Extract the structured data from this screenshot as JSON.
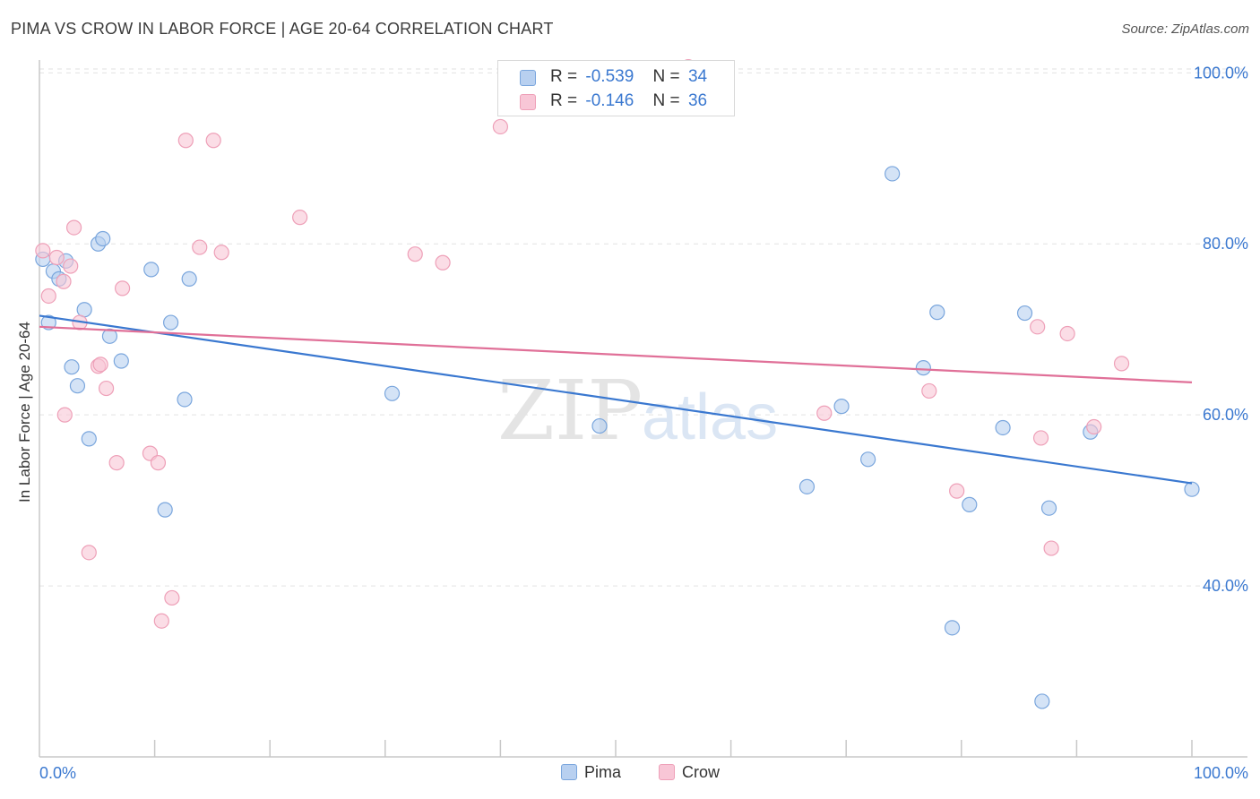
{
  "title": "PIMA VS CROW IN LABOR FORCE | AGE 20-64 CORRELATION CHART",
  "source": "Source: ZipAtlas.com",
  "watermark": {
    "zip": "ZIP",
    "atlas": "atlas"
  },
  "legend": {
    "pima": {
      "r_label": "R =",
      "r_value": "-0.539",
      "n_label": "N =",
      "n_value": "34"
    },
    "crow": {
      "r_label": "R =",
      "r_value": "-0.146",
      "n_label": "N =",
      "n_value": "36"
    }
  },
  "colors": {
    "pima_fill": "#b8d0f0",
    "pima_stroke": "#7aa6dd",
    "pima_line": "#3a78d0",
    "crow_fill": "#f8c6d6",
    "crow_stroke": "#eea0b8",
    "crow_line": "#e07098",
    "axis_text": "#3a78d0"
  },
  "chart_data": {
    "type": "scatter",
    "title": "PIMA VS CROW IN LABOR FORCE | AGE 20-64 CORRELATION CHART",
    "xlabel": "",
    "ylabel": "In Labor Force | Age 20-64",
    "xlim": [
      0,
      100
    ],
    "ylim": [
      20,
      101.5
    ],
    "x_tick_labels": [
      "0.0%",
      "100.0%"
    ],
    "y_ticks": [
      40,
      60,
      80,
      100
    ],
    "y_tick_labels": [
      "40.0%",
      "60.0%",
      "80.0%",
      "100.0%"
    ],
    "series": [
      {
        "name": "Pima",
        "points": [
          [
            0.3,
            78.2
          ],
          [
            0.8,
            70.8
          ],
          [
            1.2,
            76.8
          ],
          [
            1.7,
            75.9
          ],
          [
            2.3,
            78.0
          ],
          [
            2.8,
            65.6
          ],
          [
            3.3,
            63.4
          ],
          [
            3.9,
            72.3
          ],
          [
            4.3,
            57.2
          ],
          [
            5.1,
            80.0
          ],
          [
            5.5,
            80.6
          ],
          [
            6.1,
            69.2
          ],
          [
            7.1,
            66.3
          ],
          [
            9.7,
            77.0
          ],
          [
            10.9,
            48.9
          ],
          [
            11.4,
            70.8
          ],
          [
            12.6,
            61.8
          ],
          [
            13.0,
            75.9
          ],
          [
            30.6,
            62.5
          ],
          [
            48.6,
            58.7
          ],
          [
            66.6,
            51.6
          ],
          [
            69.6,
            61.0
          ],
          [
            71.9,
            54.8
          ],
          [
            74.0,
            88.2
          ],
          [
            76.7,
            65.5
          ],
          [
            77.9,
            72.0
          ],
          [
            79.2,
            35.1
          ],
          [
            80.7,
            49.5
          ],
          [
            83.6,
            58.5
          ],
          [
            85.5,
            71.9
          ],
          [
            87.0,
            26.5
          ],
          [
            87.6,
            49.1
          ],
          [
            91.2,
            58.0
          ],
          [
            100.0,
            51.3
          ]
        ],
        "trend": {
          "x": [
            0,
            100
          ],
          "y": [
            71.6,
            52.0
          ]
        }
      },
      {
        "name": "Crow",
        "points": [
          [
            0.3,
            79.2
          ],
          [
            0.8,
            73.9
          ],
          [
            1.5,
            78.4
          ],
          [
            2.1,
            75.6
          ],
          [
            2.2,
            60.0
          ],
          [
            2.7,
            77.4
          ],
          [
            3.0,
            81.9
          ],
          [
            3.5,
            70.8
          ],
          [
            4.3,
            43.9
          ],
          [
            5.1,
            65.7
          ],
          [
            5.3,
            65.9
          ],
          [
            5.8,
            63.1
          ],
          [
            6.7,
            54.4
          ],
          [
            7.2,
            74.8
          ],
          [
            9.6,
            55.5
          ],
          [
            10.3,
            54.4
          ],
          [
            10.6,
            35.9
          ],
          [
            11.5,
            38.6
          ],
          [
            12.7,
            92.1
          ],
          [
            13.9,
            79.6
          ],
          [
            15.1,
            92.1
          ],
          [
            15.8,
            79.0
          ],
          [
            22.6,
            83.1
          ],
          [
            32.6,
            78.8
          ],
          [
            35.0,
            77.8
          ],
          [
            40.0,
            93.7
          ],
          [
            56.3,
            100.7
          ],
          [
            68.1,
            60.2
          ],
          [
            77.2,
            62.8
          ],
          [
            79.6,
            51.1
          ],
          [
            86.6,
            70.3
          ],
          [
            86.9,
            57.3
          ],
          [
            87.8,
            44.4
          ],
          [
            89.2,
            69.5
          ],
          [
            91.5,
            58.6
          ],
          [
            93.9,
            66.0
          ]
        ],
        "trend": {
          "x": [
            0,
            100
          ],
          "y": [
            70.3,
            63.8
          ]
        }
      }
    ]
  },
  "bottom_legend": {
    "pima": "Pima",
    "crow": "Crow"
  }
}
